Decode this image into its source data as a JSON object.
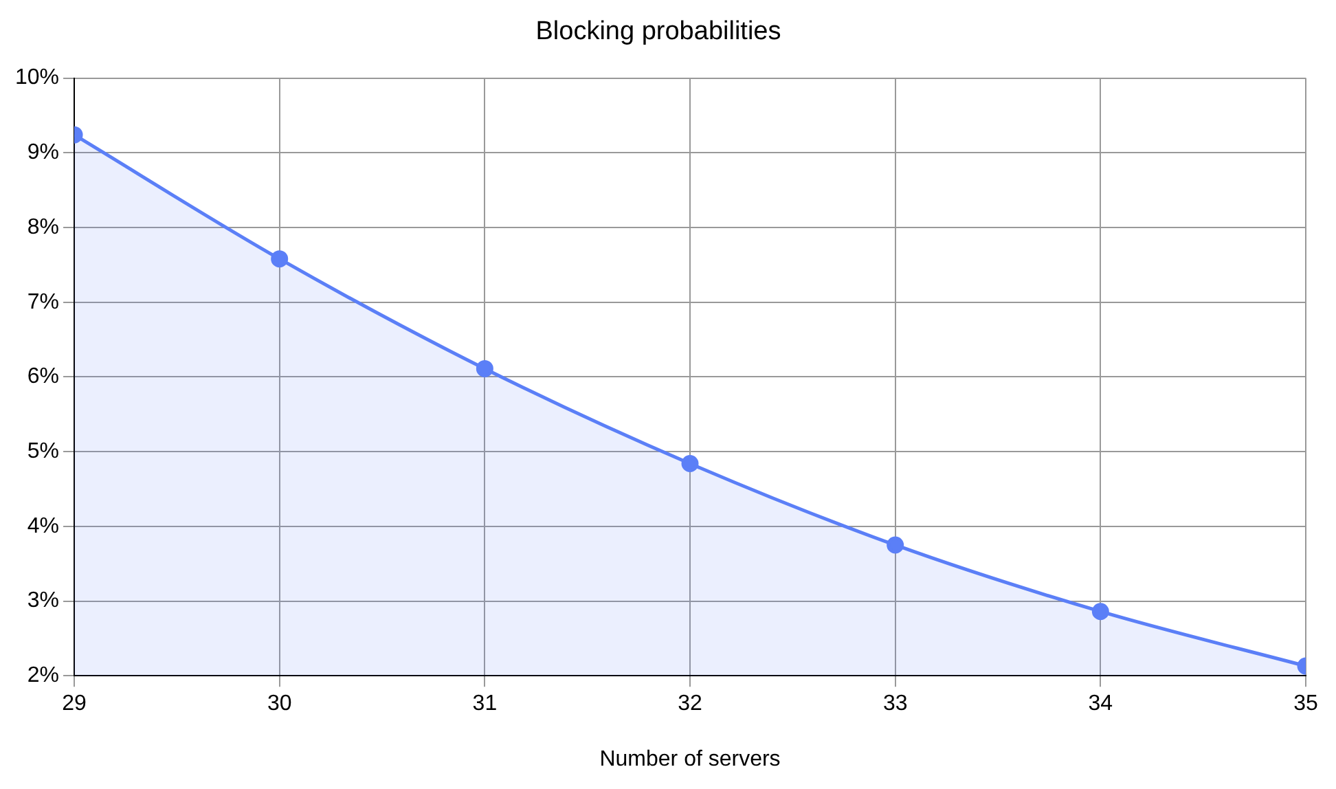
{
  "chart_data": {
    "type": "area",
    "title": "Blocking probabilities",
    "xlabel": "Number of servers",
    "x": [
      29,
      30,
      31,
      32,
      33,
      34,
      35
    ],
    "series": [
      {
        "color": "#5b7ff7",
        "values": [
          9.24,
          7.58,
          6.11,
          4.84,
          3.75,
          2.86,
          2.13
        ]
      }
    ],
    "xlim": [
      29,
      35
    ],
    "xticks": [
      29,
      30,
      31,
      32,
      33,
      34,
      35
    ],
    "ylim": [
      2,
      10
    ],
    "yticks": [
      {
        "value": 2,
        "label": "2%"
      },
      {
        "value": 3,
        "label": "3%"
      },
      {
        "value": 4,
        "label": "4%"
      },
      {
        "value": 5,
        "label": "5%"
      },
      {
        "value": 6,
        "label": "6%"
      },
      {
        "value": 7,
        "label": "7%"
      },
      {
        "value": 8,
        "label": "8%"
      },
      {
        "value": 9,
        "label": "9%"
      },
      {
        "value": 10,
        "label": "10%"
      }
    ],
    "grid": true,
    "marker": "circle",
    "legend": false
  }
}
